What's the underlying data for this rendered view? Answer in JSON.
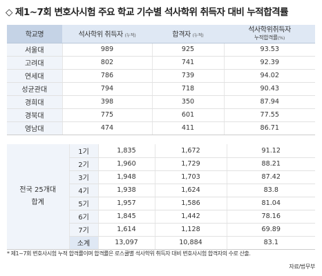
{
  "title": "◇ 제1~7회 변호사시험 주요 학교 기수별 석사학위 취득자 대비 누적합격률",
  "table1": {
    "headers": {
      "school": "학교명",
      "grads": "석사학위 취득자",
      "grads_unit": "(누적)",
      "passers": "합격자",
      "passers_unit": "(누적)",
      "rate": "석사학위취득자",
      "rate_sub": "누적합격률",
      "rate_unit": "(%)"
    },
    "rows": [
      {
        "school": "서울대",
        "grads": "989",
        "passers": "925",
        "rate": "93.53"
      },
      {
        "school": "고려대",
        "grads": "802",
        "passers": "741",
        "rate": "92.39"
      },
      {
        "school": "연세대",
        "grads": "786",
        "passers": "739",
        "rate": "94.02"
      },
      {
        "school": "성균관대",
        "grads": "794",
        "passers": "718",
        "rate": "90.43"
      },
      {
        "school": "경희대",
        "grads": "398",
        "passers": "350",
        "rate": "87.94"
      },
      {
        "school": "경북대",
        "grads": "775",
        "passers": "601",
        "rate": "77.55"
      },
      {
        "school": "영남대",
        "grads": "474",
        "passers": "411",
        "rate": "86.71"
      }
    ]
  },
  "table2": {
    "group_label_line1": "전국 25개대",
    "group_label_line2": "합계",
    "rows": [
      {
        "label": "1기",
        "grads": "1,835",
        "passers": "1,672",
        "rate": "91.12"
      },
      {
        "label": "2기",
        "grads": "1,960",
        "passers": "1,729",
        "rate": "88.21"
      },
      {
        "label": "3기",
        "grads": "1,948",
        "passers": "1,703",
        "rate": "87.42"
      },
      {
        "label": "4기",
        "grads": "1,938",
        "passers": "1,624",
        "rate": "83.8"
      },
      {
        "label": "5기",
        "grads": "1,957",
        "passers": "1,586",
        "rate": "81.04"
      },
      {
        "label": "6기",
        "grads": "1,845",
        "passers": "1,442",
        "rate": "78.16"
      },
      {
        "label": "7기",
        "grads": "1,614",
        "passers": "1,128",
        "rate": "69.89"
      },
      {
        "label": "소계",
        "grads": "13,097",
        "passers": "10,884",
        "rate": "83.1"
      }
    ]
  },
  "footnote": "* 제1~7회 변호사시험 누적 합격률이며 합격률은 로스쿨별 석사학위 취득자 대비 변호사시험 합격자의 수로 산출.",
  "source": "자료/법무부"
}
